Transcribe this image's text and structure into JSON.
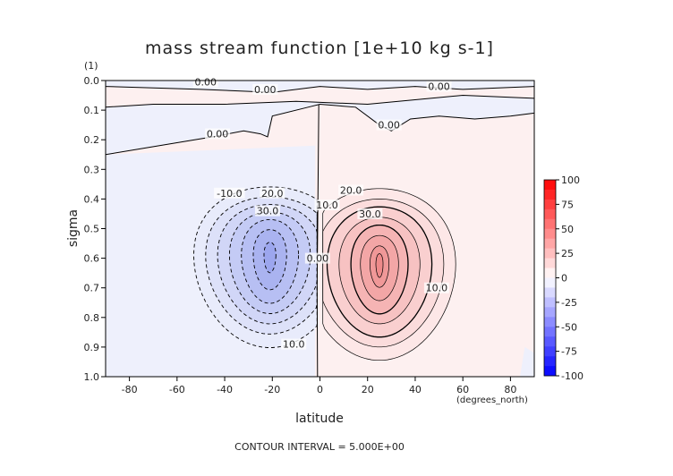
{
  "chart_data": {
    "type": "contour",
    "title": "mass stream function [1e+10 kg s-1]",
    "xlabel": "latitude",
    "xunit": "(degrees_north)",
    "ylabel": "sigma",
    "yunit": "(1)",
    "footer": "CONTOUR INTERVAL = 5.000E+00",
    "xlim": [
      -90,
      90
    ],
    "ylim": [
      0.0,
      1.0
    ],
    "y_inverted": true,
    "xticks": [
      -80,
      -60,
      -40,
      -20,
      0,
      20,
      40,
      60,
      80
    ],
    "yticks": [
      "0.0",
      "0.1",
      "0.2",
      "0.3",
      "0.4",
      "0.5",
      "0.6",
      "0.7",
      "0.8",
      "0.9",
      "1.0"
    ],
    "contour_interval": 5.0,
    "contour_labels": [
      {
        "text": "0.00",
        "x": -48,
        "y": 0.005
      },
      {
        "text": "0.00",
        "x": -23,
        "y": 0.03
      },
      {
        "text": "0.00",
        "x": 50,
        "y": 0.02
      },
      {
        "text": "0.00",
        "x": -43,
        "y": 0.18
      },
      {
        "text": "0.00",
        "x": 29,
        "y": 0.15
      },
      {
        "text": "-10.0",
        "x": -38,
        "y": 0.38
      },
      {
        "text": "20.0",
        "x": -20,
        "y": 0.38
      },
      {
        "text": "30.0",
        "x": -22,
        "y": 0.44
      },
      {
        "text": "0.00",
        "x": -1,
        "y": 0.6
      },
      {
        "text": "10.0",
        "x": 3,
        "y": 0.42
      },
      {
        "text": "20.0",
        "x": 13,
        "y": 0.37
      },
      {
        "text": "30.0",
        "x": 21,
        "y": 0.45
      },
      {
        "text": "10.0",
        "x": 49,
        "y": 0.7
      },
      {
        "text": "10.0",
        "x": -11,
        "y": 0.89
      }
    ],
    "colorbar": {
      "ticks": [
        "100",
        "75",
        "50",
        "25",
        "0",
        "-25",
        "-50",
        "-75",
        "-100"
      ],
      "range": [
        -100,
        100
      ],
      "colors": {
        "negative": "#0000ff",
        "zero": "#ffffff",
        "positive": "#ff0000"
      }
    },
    "cells": {
      "negative": {
        "center_lat": -22,
        "center_sigma": 0.58,
        "max": -40
      },
      "positive": {
        "center_lat": 25,
        "center_sigma": 0.62,
        "max": 40
      }
    }
  }
}
